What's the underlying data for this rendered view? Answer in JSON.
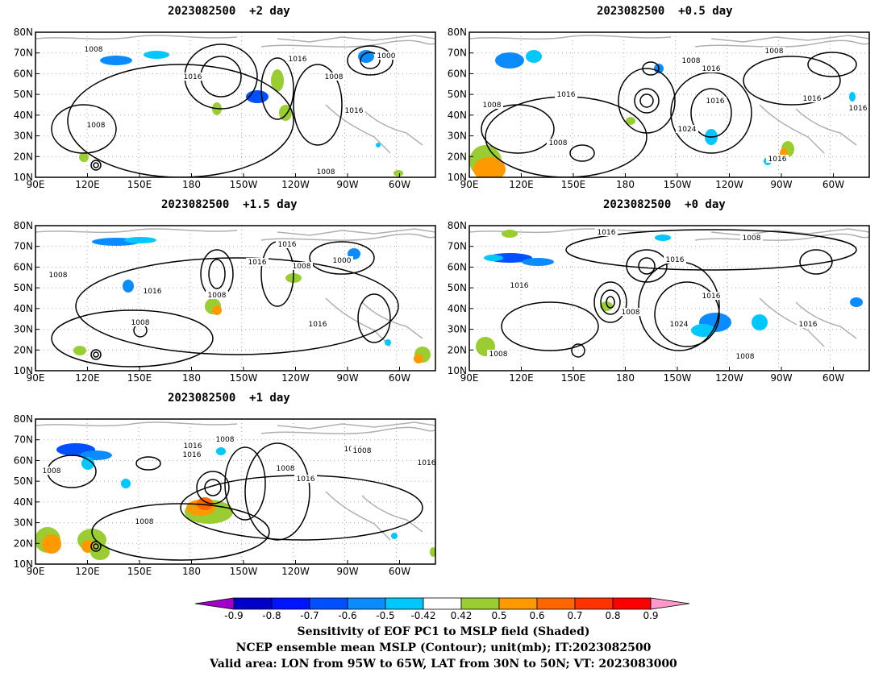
{
  "panels": [
    {
      "id": "p1",
      "title": "2023082500  +2 day"
    },
    {
      "id": "p2",
      "title": "2023082500  +0.5 day"
    },
    {
      "id": "p3",
      "title": "2023082500  +1.5 day"
    },
    {
      "id": "p4",
      "title": "2023082500  +0 day"
    },
    {
      "id": "p5",
      "title": "2023082500  +1 day"
    }
  ],
  "axes": {
    "lat_ticks": [
      "80N",
      "70N",
      "60N",
      "50N",
      "40N",
      "30N",
      "20N",
      "10N"
    ],
    "lon_ticks": [
      "90E",
      "120E",
      "150E",
      "180",
      "150W",
      "120W",
      "90W",
      "60W"
    ]
  },
  "contour_labels": {
    "p1": [
      "1008",
      "1016",
      "1000",
      "1016",
      "1008",
      "1016",
      "1008",
      "1008"
    ],
    "p2": [
      "1008",
      "1016",
      "1008",
      "1016",
      "1016",
      "1016",
      "1024",
      "1008",
      "1016",
      "1008",
      "1016"
    ],
    "p3": [
      "1008",
      "1016",
      "1016",
      "1008",
      "1000",
      "1008",
      "1016",
      "1008",
      "1016"
    ],
    "p4": [
      "1016",
      "1008",
      "1016",
      "1016",
      "1008",
      "1024",
      "1016",
      "1016",
      "1008",
      "1008"
    ],
    "p5": [
      "1008",
      "1016",
      "1008",
      "1016",
      "1008",
      "1016",
      "1016",
      "1016",
      "1008",
      "1008"
    ]
  },
  "colorbar": {
    "labels": [
      "-0.9",
      "-0.8",
      "-0.7",
      "-0.6",
      "-0.5",
      "-0.42",
      "0.42",
      "0.5",
      "0.6",
      "0.7",
      "0.8",
      "0.9"
    ],
    "colors": [
      "#a000c8",
      "#0000c8",
      "#0014ff",
      "#0050ff",
      "#0a8cff",
      "#00c8ff",
      "#ffffff",
      "#9acd32",
      "#ff9900",
      "#ff6600",
      "#ff3300",
      "#ff0000",
      "#ff99cc"
    ]
  },
  "footer": {
    "line1": "Sensitivity of EOF PC1 to MSLP field (Shaded)",
    "line2": "NCEP ensemble mean MSLP (Contour); unit(mb); IT:2023082500",
    "line3": "Valid area: LON from 95W to 65W, LAT from 30N to 50N; VT: 2023083000"
  }
}
